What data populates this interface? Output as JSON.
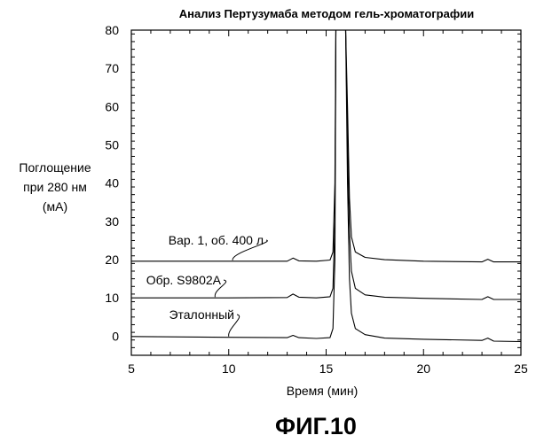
{
  "figure_label": "ФИГ.10",
  "chart_data": {
    "type": "line",
    "title": "Анализ Пертузумаба методом гель-хроматографии",
    "xlabel": "Время (мин)",
    "ylabel": [
      "Поглощение",
      "при 280 нм",
      "(мА)"
    ],
    "xlim": [
      5,
      25
    ],
    "ylim": [
      -5,
      80
    ],
    "xticks": [
      5,
      10,
      15,
      20,
      25
    ],
    "yticks": [
      0,
      10,
      20,
      30,
      40,
      50,
      60,
      70,
      80
    ],
    "grid": false,
    "series": [
      {
        "name": "Вар. 1, об. 400 л",
        "x": [
          5,
          10,
          13.0,
          13.3,
          13.6,
          14.5,
          15.2,
          15.35,
          15.45,
          15.5,
          16.0,
          16.1,
          16.2,
          16.3,
          16.5,
          17.0,
          18.0,
          20.0,
          23.0,
          23.3,
          23.6,
          25.0
        ],
        "y": [
          19.6,
          19.6,
          19.6,
          20.4,
          19.7,
          19.6,
          19.9,
          22.0,
          40.0,
          80.0,
          80.0,
          60.0,
          36.0,
          26.0,
          22.0,
          20.6,
          20.0,
          19.6,
          19.4,
          20.1,
          19.4,
          19.4
        ]
      },
      {
        "name": "Обр. S9802A",
        "x": [
          5,
          10,
          13.0,
          13.3,
          13.6,
          14.5,
          15.2,
          15.35,
          15.45,
          15.5,
          16.0,
          16.1,
          16.2,
          16.3,
          16.5,
          17.0,
          18.0,
          20.0,
          23.0,
          23.3,
          23.6,
          25.0
        ],
        "y": [
          10.0,
          10.0,
          10.1,
          11.0,
          10.2,
          10.0,
          10.3,
          12.5,
          30.0,
          80.0,
          80.0,
          50.0,
          27.0,
          17.0,
          12.5,
          10.8,
          10.2,
          9.9,
          9.6,
          10.3,
          9.6,
          9.6
        ]
      },
      {
        "name": "Эталонный",
        "x": [
          5,
          10,
          13.0,
          13.3,
          13.6,
          14.5,
          15.2,
          15.35,
          15.45,
          15.5,
          16.0,
          16.1,
          16.2,
          16.3,
          16.5,
          17.0,
          18.0,
          20.0,
          23.0,
          23.3,
          23.6,
          25.0
        ],
        "y": [
          -0.1,
          -0.3,
          -0.4,
          0.2,
          -0.4,
          -0.6,
          -0.4,
          2.0,
          20.0,
          80.0,
          80.0,
          40.0,
          15.0,
          6.0,
          2.0,
          0.4,
          -0.5,
          -0.8,
          -1.1,
          -0.5,
          -1.3,
          -1.4
        ]
      }
    ],
    "annotations": [
      {
        "text": "Вар. 1, об. 400 л",
        "series": 0
      },
      {
        "text": "Обр. S9802A",
        "series": 1
      },
      {
        "text": "Эталонный",
        "series": 2
      }
    ]
  }
}
